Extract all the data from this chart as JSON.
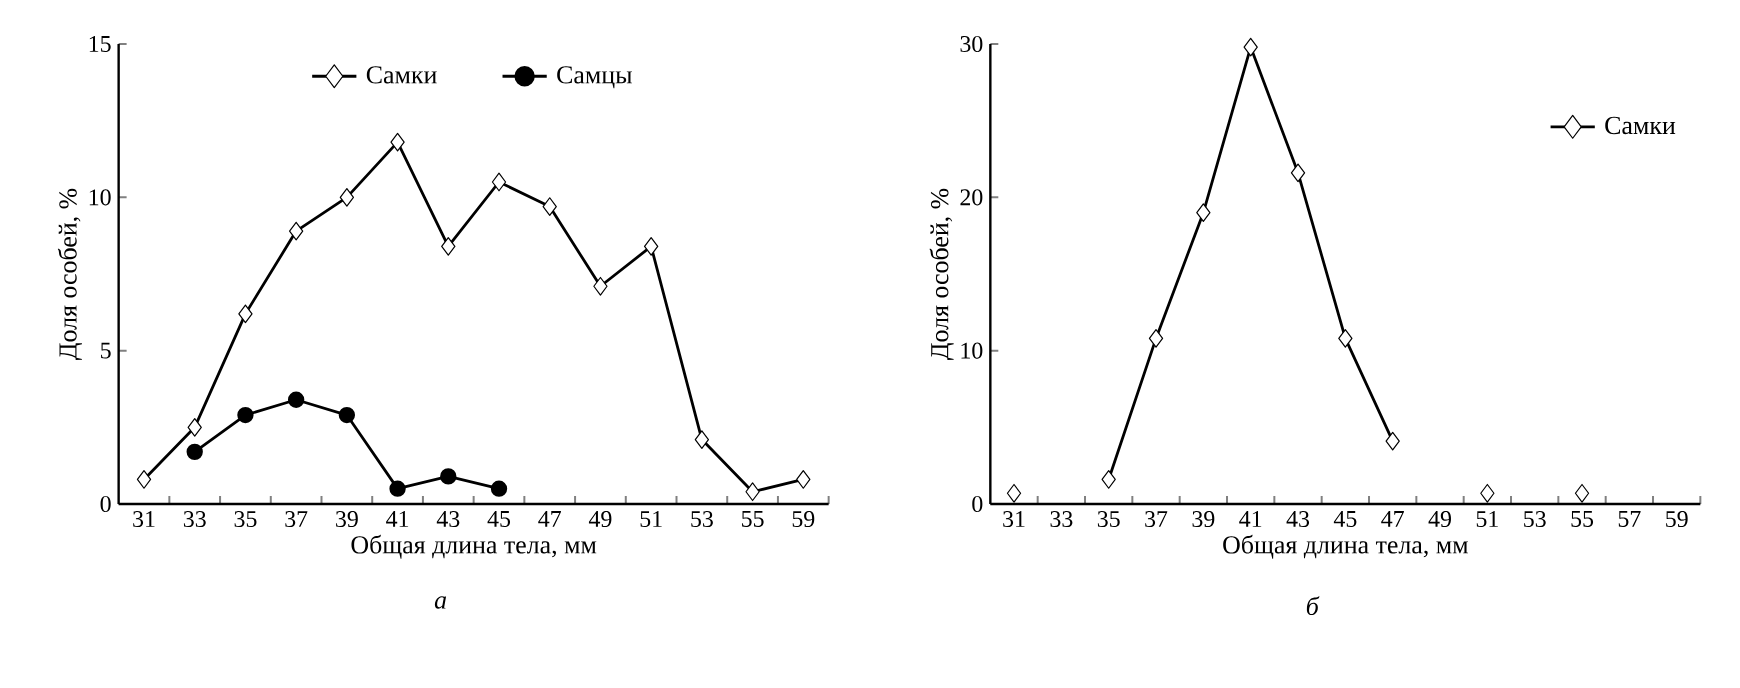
{
  "chart_data": [
    {
      "type": "line",
      "xlabel": "Общая длина тела, мм",
      "ylabel": "Доля особей, %",
      "categories": [
        "31",
        "33",
        "35",
        "37",
        "39",
        "41",
        "43",
        "45",
        "47",
        "49",
        "51",
        "53",
        "55",
        "59"
      ],
      "ylim": [
        0,
        15
      ],
      "yticks": [
        0,
        5,
        10,
        15
      ],
      "legend": "top",
      "annotations": [
        "а"
      ],
      "series": [
        {
          "name": "Самки",
          "color": "#000000",
          "marker": "diamond",
          "values": [
            0.8,
            2.5,
            6.2,
            8.9,
            10.0,
            11.8,
            8.4,
            10.5,
            9.7,
            7.1,
            8.4,
            2.1,
            0.4,
            0.8
          ]
        },
        {
          "name": "Самцы",
          "color": "#000000",
          "marker": "circle",
          "values": [
            null,
            1.7,
            2.9,
            3.4,
            2.9,
            0.5,
            0.9,
            0.5,
            null,
            null,
            null,
            null,
            null,
            null
          ]
        }
      ]
    },
    {
      "type": "line",
      "xlabel": "Общая длина тела, мм",
      "ylabel": "Доля особей, %",
      "categories": [
        "31",
        "33",
        "35",
        "37",
        "39",
        "41",
        "43",
        "45",
        "47",
        "49",
        "51",
        "53",
        "55",
        "57",
        "59"
      ],
      "ylim": [
        0,
        30
      ],
      "yticks": [
        0,
        10,
        20,
        30
      ],
      "legend": "top right",
      "annotations": [
        "б"
      ],
      "series": [
        {
          "name": "Самки",
          "color": "#000000",
          "marker": "diamond",
          "values": [
            0.7,
            null,
            1.6,
            10.8,
            19.0,
            29.8,
            21.6,
            10.8,
            4.1,
            null,
            0.7,
            null,
            0.7,
            null,
            null
          ]
        }
      ]
    }
  ]
}
